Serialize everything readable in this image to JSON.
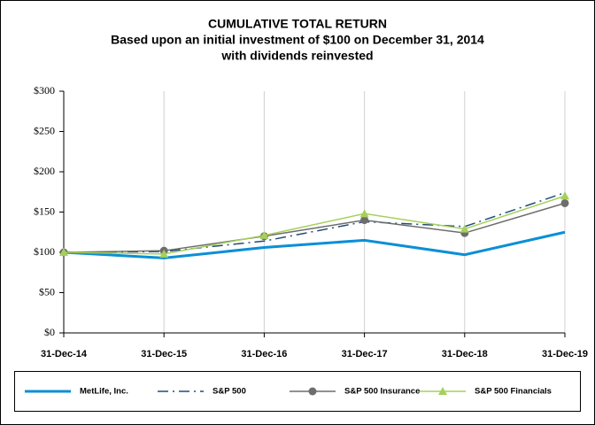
{
  "chart_data": {
    "type": "line",
    "title": "CUMULATIVE TOTAL RETURN",
    "subtitle": [
      "Based upon an initial investment of $100 on December 31, 2014",
      "with dividends reinvested"
    ],
    "categories": [
      "31-Dec-14",
      "31-Dec-15",
      "31-Dec-16",
      "31-Dec-17",
      "31-Dec-18",
      "31-Dec-19"
    ],
    "ylim": [
      0,
      300
    ],
    "yticks": [
      {
        "value": 0,
        "label": "$0"
      },
      {
        "value": 50,
        "label": "$50"
      },
      {
        "value": 100,
        "label": "$100"
      },
      {
        "value": 150,
        "label": "$150"
      },
      {
        "value": 200,
        "label": "$200"
      },
      {
        "value": 250,
        "label": "$250"
      },
      {
        "value": 300,
        "label": "$300"
      }
    ],
    "grid": "x",
    "legend": "bottom",
    "series": [
      {
        "name": "MetLife, Inc.",
        "color": "#0b8fd6",
        "style": "solid",
        "marker": "none",
        "values": [
          100,
          93,
          106,
          115,
          97,
          125
        ]
      },
      {
        "name": "S&P 500",
        "color": "#1f4e79",
        "style": "dashdot",
        "marker": "none",
        "values": [
          100,
          101,
          114,
          138,
          132,
          174
        ]
      },
      {
        "name": "S&P 500 Insurance",
        "color": "#6d6d6d",
        "style": "solid",
        "marker": "circle",
        "values": [
          100,
          102,
          120,
          140,
          124,
          161
        ]
      },
      {
        "name": "S&P 500 Financials",
        "color": "#a6d05c",
        "style": "solid",
        "marker": "triangle",
        "values": [
          100,
          98,
          121,
          148,
          129,
          170
        ]
      }
    ]
  }
}
